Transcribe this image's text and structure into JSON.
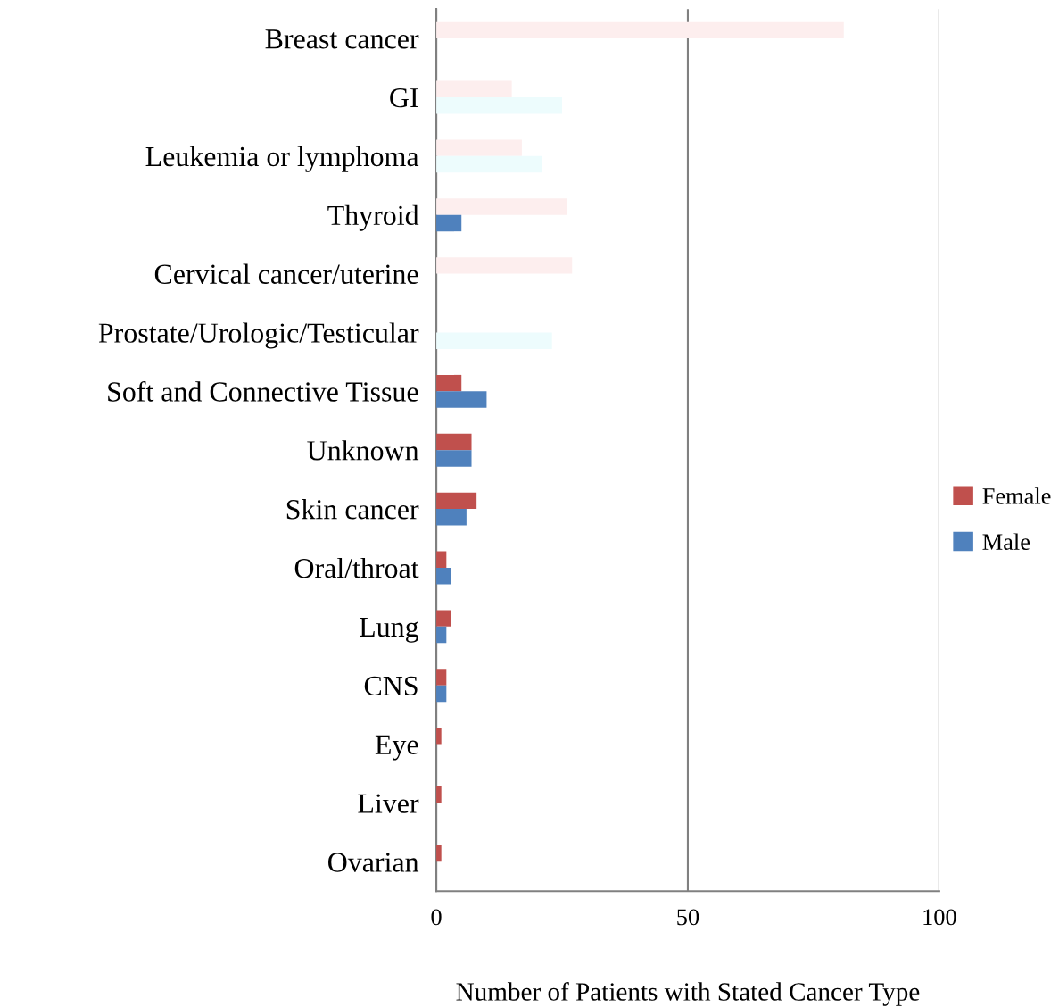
{
  "chart_data": {
    "type": "bar",
    "orientation": "horizontal",
    "xlabel": "Number of Patients with Stated Cancer Type",
    "categories": [
      "Breast cancer",
      "GI",
      "Leukemia or lymphoma",
      "Thyroid",
      "Cervical cancer/uterine",
      "Prostate/Urologic/Testicular",
      "Soft and Connective Tissue",
      "Unknown",
      "Skin cancer",
      "Oral/throat",
      "Lung",
      "CNS",
      "Eye",
      "Liver",
      "Ovarian"
    ],
    "series": [
      {
        "name": "Female",
        "color": "#c0504d",
        "colors": [
          "#fdeeee",
          "#fdeeee",
          "#fdeeee",
          "#fdeeee",
          "#fdeeee",
          "#c0504d",
          "#c0504d",
          "#c0504d",
          "#c0504d",
          "#c0504d",
          "#c0504d",
          "#c0504d",
          "#c0504d",
          "#c0504d",
          "#c0504d"
        ],
        "values": [
          81,
          15,
          17,
          26,
          27,
          null,
          5,
          7,
          8,
          2,
          3,
          2,
          1,
          1,
          1
        ]
      },
      {
        "name": "Male",
        "color": "#4f81bd",
        "colors": [
          "#edfcfd",
          "#edfcfd",
          "#edfcfd",
          "#4f81bd",
          "#edfcfd",
          "#edfcfd",
          "#4f81bd",
          "#4f81bd",
          "#4f81bd",
          "#4f81bd",
          "#4f81bd",
          "#4f81bd",
          "#4f81bd",
          "#4f81bd",
          "#4f81bd"
        ],
        "values": [
          null,
          25,
          21,
          5,
          null,
          23,
          10,
          7,
          6,
          3,
          2,
          2,
          null,
          null,
          null
        ]
      }
    ],
    "xlim": [
      0,
      100
    ],
    "xticks": [
      0,
      50,
      100
    ],
    "grid": "x",
    "legend": "right"
  }
}
